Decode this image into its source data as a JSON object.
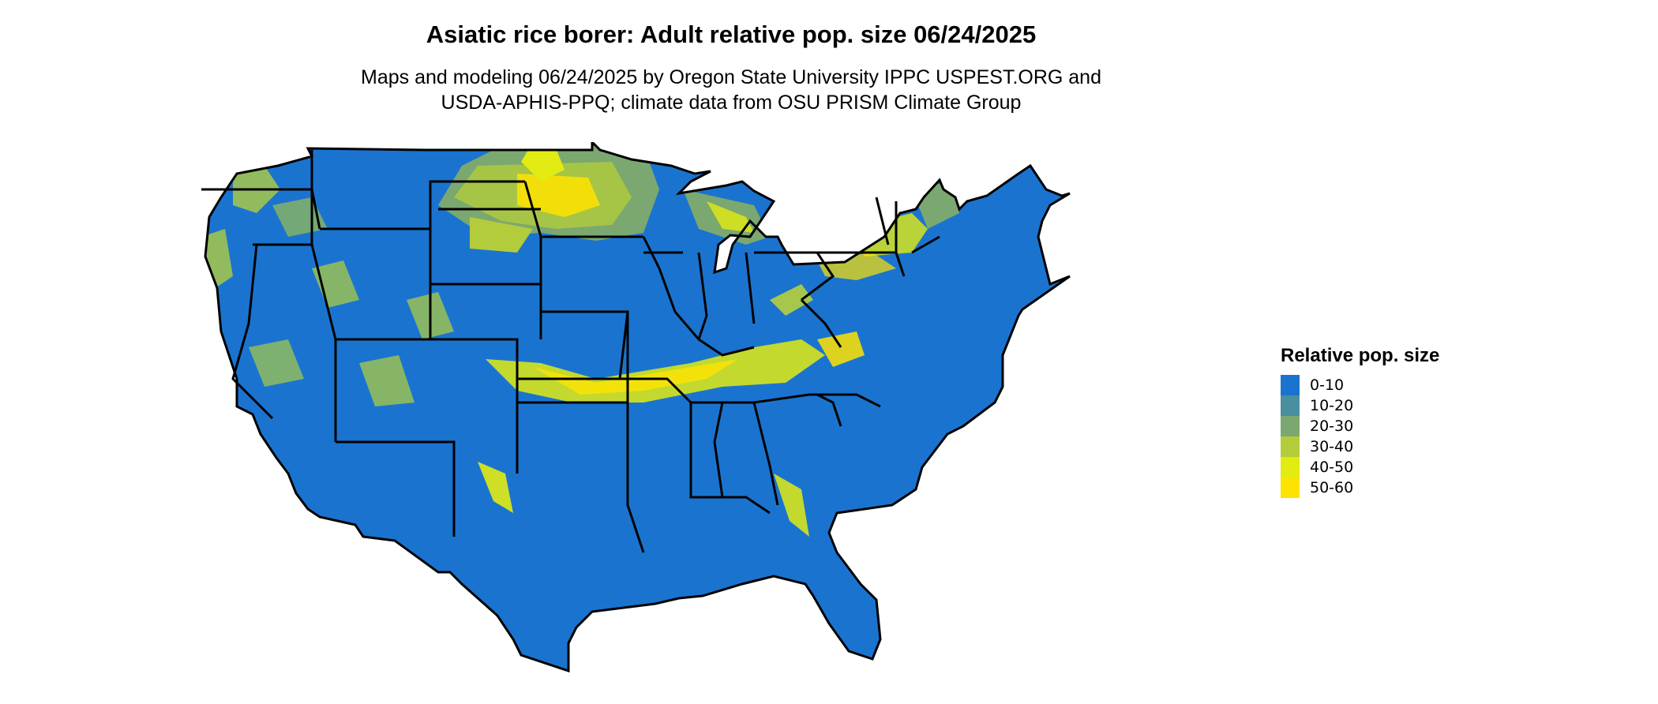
{
  "title": "Asiatic rice borer: Adult relative pop. size 06/24/2025",
  "subtitle": {
    "line1": "Maps and modeling 06/24/2025 by Oregon State University IPPC USPEST.ORG and",
    "line2": "USDA-APHIS-PPQ; climate data from OSU PRISM Climate Group"
  },
  "legend": {
    "title": "Relative pop. size",
    "items": [
      {
        "label": "0-10",
        "color": "#1a74cf"
      },
      {
        "label": "10-20",
        "color": "#4a8fa0"
      },
      {
        "label": "20-30",
        "color": "#7ba870"
      },
      {
        "label": "30-40",
        "color": "#b2cc3c"
      },
      {
        "label": "40-50",
        "color": "#e2eb12"
      },
      {
        "label": "50-60",
        "color": "#ffe300"
      }
    ]
  },
  "colors": {
    "base": "#1a74cf",
    "border": "#000000"
  }
}
